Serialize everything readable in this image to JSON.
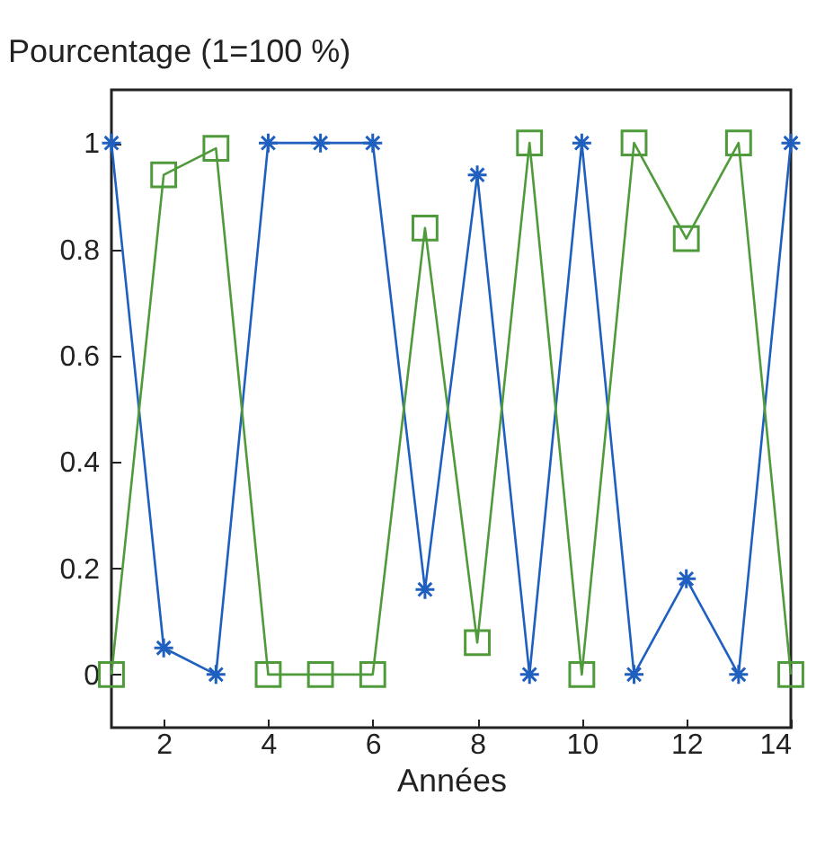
{
  "chart_data": {
    "type": "line",
    "ylabel": "Pourcentage (1=100 %)",
    "xlabel": "Années",
    "x": [
      1,
      2,
      3,
      4,
      5,
      6,
      7,
      8,
      9,
      10,
      11,
      12,
      13,
      14
    ],
    "series": [
      {
        "color": "#1f5fbf",
        "marker": "cross",
        "values": [
          1,
          0.05,
          0,
          1,
          1,
          1,
          0.16,
          0.94,
          0,
          1,
          0,
          0.18,
          0,
          1
        ]
      },
      {
        "color": "#4f9a3a",
        "marker": "square",
        "values": [
          0,
          0.94,
          0.99,
          0,
          0,
          0,
          0.84,
          0.06,
          1,
          0,
          1,
          0.82,
          1,
          0
        ]
      }
    ],
    "xlim": [
      1,
      14
    ],
    "xticks": [
      2,
      4,
      6,
      8,
      10,
      12,
      14
    ],
    "ylim": [
      -0.1,
      1.1
    ],
    "yticks": [
      0,
      0.2,
      0.4,
      0.6,
      0.8,
      1
    ],
    "grid": false
  }
}
